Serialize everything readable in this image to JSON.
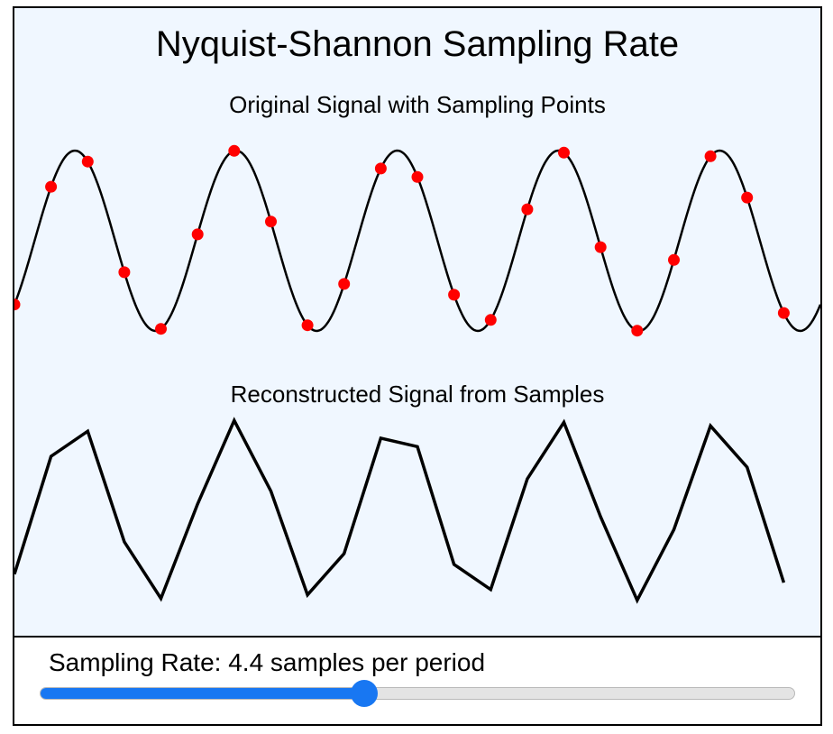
{
  "title": "Nyquist-Shannon Sampling Rate",
  "original_signal": {
    "heading": "Original Signal with Sampling Points",
    "periods": 5,
    "curve_color": "#000000",
    "sample_color": "#ff0000"
  },
  "reconstructed_signal": {
    "heading": "Reconstructed Signal from Samples",
    "line_color": "#000000"
  },
  "controls": {
    "sampling_rate_label": "Sampling Rate: 4.4 samples per period",
    "sampling_rate_value": 4.4,
    "slider_fraction": 0.43,
    "slider_color": "#1877f2"
  }
}
